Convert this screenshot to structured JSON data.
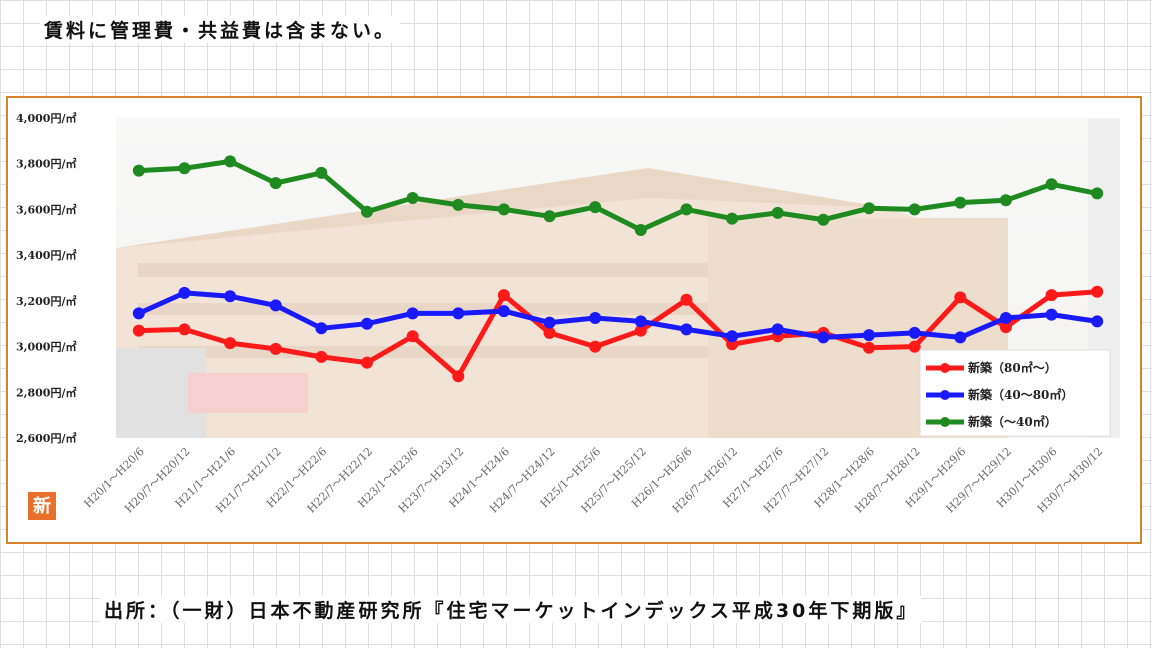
{
  "header": {
    "note": "賃料に管理費・共益費は含まない。"
  },
  "footer": {
    "source": "出所：（一財）日本不動産研究所『住宅マーケットインデックス平成30年下期版』"
  },
  "chart_data": {
    "type": "line",
    "badge": "新",
    "y_ticks": [
      "4,000円/㎡",
      "3,800円/㎡",
      "3,600円/㎡",
      "3,400円/㎡",
      "3,200円/㎡",
      "3,000円/㎡",
      "2,800円/㎡",
      "2,600円/㎡"
    ],
    "ylim": [
      2600,
      4000
    ],
    "categories": [
      "H20/1～H20/6",
      "H20/7～H20/12",
      "H21/1～H21/6",
      "H21/7～H21/12",
      "H22/1～H22/6",
      "H22/7～H22/12",
      "H23/1～H23/6",
      "H23/7～H23/12",
      "H24/1～H24/6",
      "H24/7～H24/12",
      "H25/1～H25/6",
      "H25/7～H25/12",
      "H26/1～H26/6",
      "H26/7～H26/12",
      "H27/1～H27/6",
      "H27/7～H27/12",
      "H28/1～H28/6",
      "H28/7～H28/12",
      "H29/1～H29/6",
      "H29/7～H29/12",
      "H30/1～H30/6",
      "H30/7～H30/12"
    ],
    "series": [
      {
        "name": "新築（80㎡～）",
        "color": "#ff1a1a",
        "values": [
          3070,
          3075,
          3015,
          2990,
          2955,
          2930,
          3045,
          2870,
          3225,
          3060,
          3000,
          3070,
          3205,
          3010,
          3045,
          3060,
          2995,
          3000,
          3215,
          3085,
          3225,
          3240
        ]
      },
      {
        "name": "新築（40～80㎡）",
        "color": "#1a1aff",
        "values": [
          3145,
          3235,
          3220,
          3180,
          3080,
          3100,
          3145,
          3145,
          3155,
          3105,
          3125,
          3110,
          3075,
          3045,
          3075,
          3040,
          3050,
          3060,
          3040,
          3125,
          3140,
          3110
        ]
      },
      {
        "name": "新築（～40㎡）",
        "color": "#1f8a1f",
        "values": [
          3770,
          3780,
          3810,
          3715,
          3760,
          3590,
          3650,
          3620,
          3600,
          3570,
          3610,
          3510,
          3600,
          3560,
          3585,
          3555,
          3605,
          3600,
          3630,
          3640,
          3710,
          3670
        ]
      }
    ],
    "legend_position": "bottom-right",
    "colors": {
      "frame": "#d9822b",
      "badge": "#e8702a"
    }
  }
}
